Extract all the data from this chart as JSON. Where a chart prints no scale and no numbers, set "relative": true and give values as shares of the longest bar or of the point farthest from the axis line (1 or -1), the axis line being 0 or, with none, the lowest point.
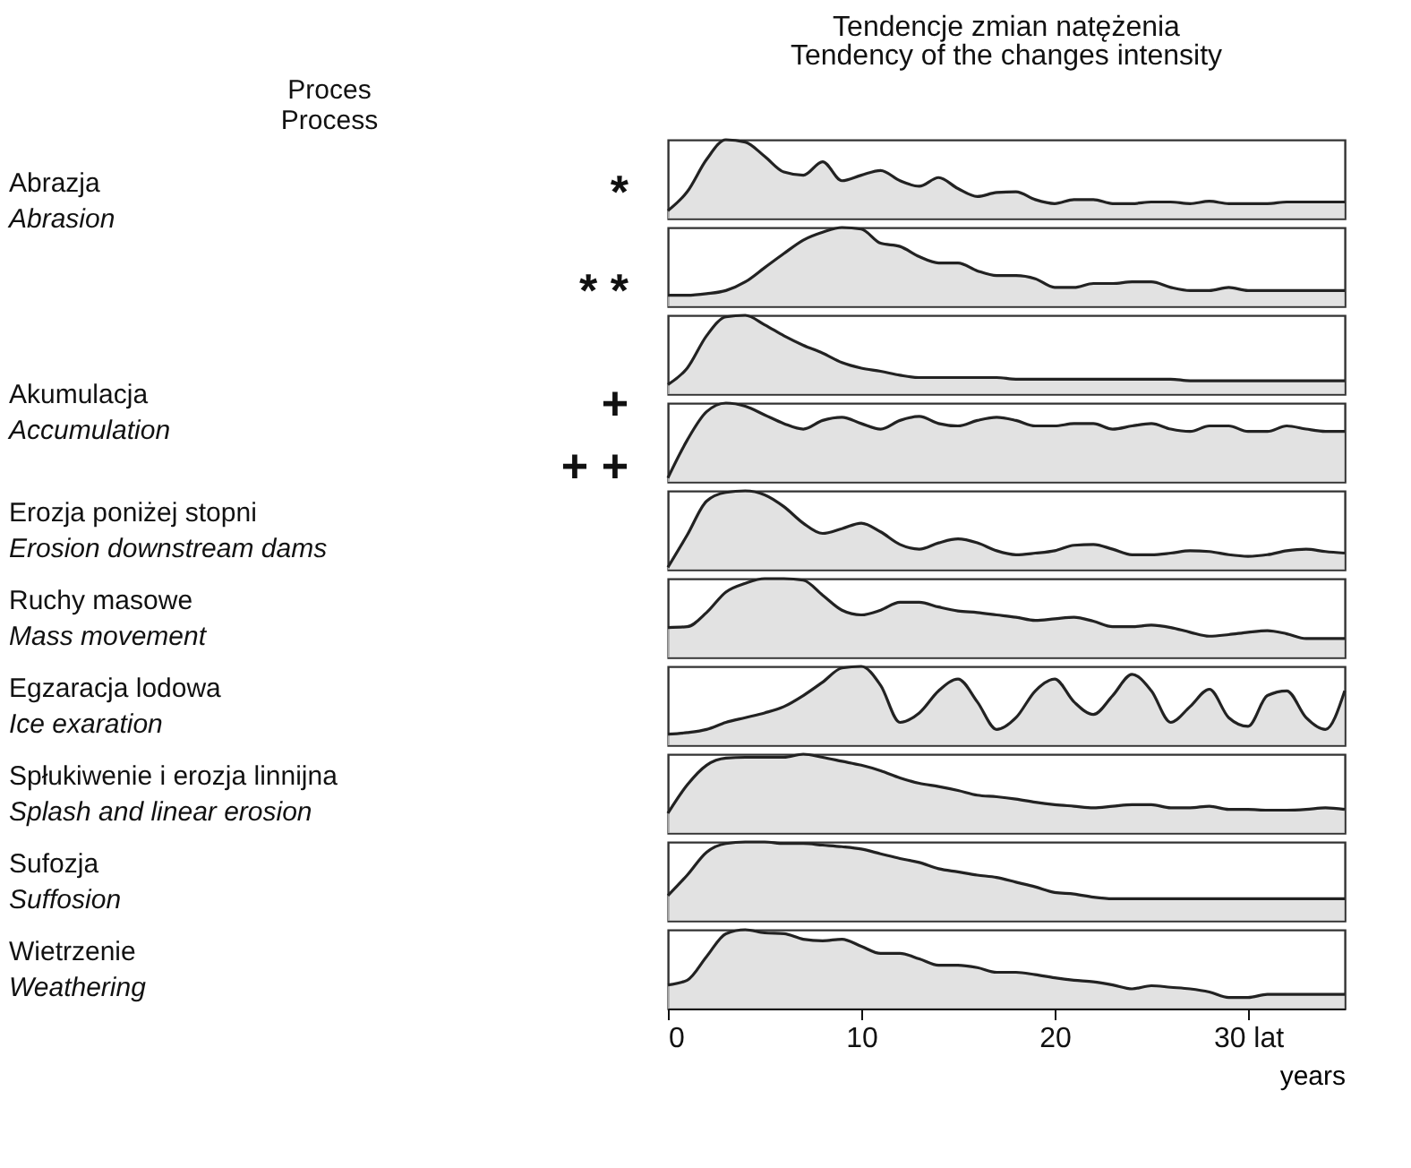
{
  "chart_data": [
    {
      "type": "area",
      "title": "Tendencje zmian natężenia",
      "subtitle": "Tendency of the changes intensity",
      "ylabel": "Abrazja",
      "annotations": [
        "Proces",
        "Process",
        "Abrasion",
        "*"
      ],
      "relative": true,
      "color": "#d6d6d6",
      "xlim": [
        0,
        35
      ],
      "tick_labels": false,
      "x": [
        0,
        1,
        2,
        3,
        4,
        5,
        6,
        7,
        8,
        9,
        10,
        11,
        12,
        13,
        14,
        15,
        16,
        17,
        18,
        19,
        20,
        21,
        22,
        23,
        24,
        25,
        26,
        27,
        28,
        29,
        30,
        31,
        32,
        33,
        34,
        35
      ],
      "values": [
        0.1,
        0.34,
        0.75,
        1,
        0.97,
        0.79,
        0.59,
        0.55,
        0.72,
        0.48,
        0.55,
        0.61,
        0.48,
        0.41,
        0.52,
        0.38,
        0.28,
        0.33,
        0.34,
        0.24,
        0.19,
        0.24,
        0.24,
        0.19,
        0.19,
        0.21,
        0.21,
        0.19,
        0.22,
        0.19,
        0.19,
        0.19,
        0.21,
        0.21,
        0.21,
        0.21
      ]
    },
    {
      "type": "area",
      "annotations": [
        "* *"
      ],
      "relative": true,
      "color": "#d6d6d6",
      "xlim": [
        0,
        35
      ],
      "tick_labels": false,
      "x": [
        0,
        1,
        2,
        3,
        4,
        5,
        6,
        7,
        8,
        9,
        10,
        11,
        12,
        13,
        14,
        15,
        16,
        17,
        18,
        19,
        20,
        21,
        22,
        23,
        24,
        25,
        26,
        27,
        28,
        29,
        30,
        31,
        32,
        33,
        34,
        35
      ],
      "values": [
        0.14,
        0.14,
        0.16,
        0.2,
        0.31,
        0.49,
        0.67,
        0.84,
        0.94,
        1,
        0.98,
        0.8,
        0.76,
        0.63,
        0.55,
        0.55,
        0.45,
        0.39,
        0.39,
        0.35,
        0.24,
        0.24,
        0.29,
        0.29,
        0.31,
        0.31,
        0.24,
        0.2,
        0.2,
        0.24,
        0.2,
        0.2,
        0.2,
        0.2,
        0.2,
        0.2
      ]
    },
    {
      "type": "area",
      "ylabel": "Akumulacja",
      "annotations": [
        "Accumulation",
        "+"
      ],
      "relative": true,
      "color": "#d6d6d6",
      "xlim": [
        0,
        35
      ],
      "tick_labels": false,
      "x": [
        0,
        1,
        2,
        3,
        4,
        5,
        6,
        7,
        8,
        9,
        10,
        11,
        12,
        13,
        14,
        15,
        16,
        17,
        18,
        19,
        20,
        21,
        22,
        23,
        24,
        25,
        26,
        27,
        28,
        29,
        30,
        31,
        32,
        33,
        34,
        35
      ],
      "values": [
        0.12,
        0.33,
        0.74,
        0.98,
        1,
        0.88,
        0.74,
        0.62,
        0.52,
        0.4,
        0.33,
        0.29,
        0.24,
        0.21,
        0.21,
        0.21,
        0.21,
        0.21,
        0.19,
        0.19,
        0.19,
        0.19,
        0.19,
        0.19,
        0.19,
        0.19,
        0.19,
        0.17,
        0.17,
        0.17,
        0.17,
        0.17,
        0.17,
        0.17,
        0.17,
        0.17
      ]
    },
    {
      "type": "area",
      "annotations": [
        "+ +"
      ],
      "relative": true,
      "color": "#d6d6d6",
      "xlim": [
        0,
        35
      ],
      "tick_labels": false,
      "x": [
        0,
        1,
        2,
        3,
        4,
        5,
        6,
        7,
        8,
        9,
        10,
        11,
        12,
        13,
        14,
        15,
        16,
        17,
        18,
        19,
        20,
        21,
        22,
        23,
        24,
        25,
        26,
        27,
        28,
        29,
        30,
        31,
        32,
        33,
        34,
        35
      ],
      "values": [
        0.05,
        0.53,
        0.89,
        1,
        0.96,
        0.85,
        0.74,
        0.67,
        0.78,
        0.82,
        0.74,
        0.67,
        0.78,
        0.83,
        0.74,
        0.71,
        0.78,
        0.82,
        0.78,
        0.71,
        0.71,
        0.74,
        0.74,
        0.67,
        0.71,
        0.74,
        0.67,
        0.64,
        0.71,
        0.71,
        0.64,
        0.64,
        0.71,
        0.67,
        0.64,
        0.64
      ]
    },
    {
      "type": "area",
      "ylabel": "Erozja poniżej stopni",
      "annotations": [
        "Erosion downstream dams"
      ],
      "relative": true,
      "color": "#d6d6d6",
      "xlim": [
        0,
        35
      ],
      "tick_labels": false,
      "x": [
        0,
        1,
        2,
        3,
        4,
        5,
        6,
        7,
        8,
        9,
        10,
        11,
        12,
        13,
        14,
        15,
        16,
        17,
        18,
        19,
        20,
        21,
        22,
        23,
        24,
        25,
        26,
        27,
        28,
        29,
        30,
        31,
        32,
        33,
        34,
        35
      ],
      "values": [
        0.03,
        0.44,
        0.87,
        0.98,
        1,
        0.95,
        0.8,
        0.59,
        0.46,
        0.52,
        0.59,
        0.48,
        0.32,
        0.26,
        0.34,
        0.39,
        0.34,
        0.24,
        0.19,
        0.21,
        0.24,
        0.31,
        0.32,
        0.26,
        0.19,
        0.19,
        0.21,
        0.24,
        0.23,
        0.19,
        0.17,
        0.19,
        0.24,
        0.26,
        0.23,
        0.21
      ]
    },
    {
      "type": "area",
      "ylabel": "Ruchy masowe",
      "annotations": [
        "Mass movement"
      ],
      "relative": true,
      "color": "#d6d6d6",
      "xlim": [
        0,
        35
      ],
      "tick_labels": false,
      "x": [
        0,
        1,
        2,
        3,
        4,
        5,
        6,
        7,
        8,
        9,
        10,
        11,
        12,
        13,
        14,
        15,
        16,
        17,
        18,
        19,
        20,
        21,
        22,
        23,
        24,
        25,
        26,
        27,
        28,
        29,
        30,
        31,
        32,
        33,
        34,
        35
      ],
      "values": [
        0.38,
        0.39,
        0.57,
        0.83,
        0.94,
        1,
        1,
        0.98,
        0.79,
        0.6,
        0.54,
        0.6,
        0.7,
        0.7,
        0.64,
        0.59,
        0.57,
        0.54,
        0.51,
        0.47,
        0.49,
        0.51,
        0.46,
        0.39,
        0.39,
        0.41,
        0.38,
        0.32,
        0.27,
        0.29,
        0.32,
        0.34,
        0.3,
        0.24,
        0.24,
        0.24
      ]
    },
    {
      "type": "area",
      "ylabel": "Egzaracja lodowa",
      "annotations": [
        "Ice exaration"
      ],
      "relative": true,
      "color": "#d6d6d6",
      "xlim": [
        0,
        35
      ],
      "tick_labels": false,
      "x": [
        0,
        1,
        2,
        3,
        4,
        5,
        6,
        7,
        8,
        9,
        10,
        11,
        12,
        13,
        14,
        15,
        16,
        17,
        18,
        19,
        20,
        21,
        22,
        23,
        24,
        25,
        26,
        27,
        28,
        29,
        30,
        31,
        32,
        33,
        34,
        35
      ],
      "values": [
        0.14,
        0.16,
        0.2,
        0.29,
        0.35,
        0.41,
        0.49,
        0.63,
        0.8,
        0.98,
        1,
        0.76,
        0.29,
        0.41,
        0.69,
        0.84,
        0.55,
        0.2,
        0.35,
        0.69,
        0.84,
        0.55,
        0.39,
        0.63,
        0.9,
        0.69,
        0.29,
        0.49,
        0.71,
        0.35,
        0.24,
        0.63,
        0.69,
        0.35,
        0.2,
        0.69
      ]
    },
    {
      "type": "area",
      "ylabel": "Spłukiwenie i erozja linnijna",
      "annotations": [
        "Splash and linear erosion"
      ],
      "relative": true,
      "color": "#d6d6d6",
      "xlim": [
        0,
        35
      ],
      "tick_labels": false,
      "x": [
        0,
        1,
        2,
        3,
        4,
        5,
        6,
        7,
        8,
        9,
        10,
        11,
        12,
        13,
        14,
        15,
        16,
        17,
        18,
        19,
        20,
        21,
        22,
        23,
        24,
        25,
        26,
        27,
        28,
        29,
        30,
        31,
        32,
        33,
        34,
        35
      ],
      "values": [
        0.25,
        0.61,
        0.86,
        0.95,
        0.96,
        0.96,
        0.96,
        1,
        0.96,
        0.91,
        0.86,
        0.79,
        0.7,
        0.63,
        0.59,
        0.54,
        0.48,
        0.46,
        0.43,
        0.39,
        0.36,
        0.34,
        0.32,
        0.34,
        0.36,
        0.36,
        0.32,
        0.32,
        0.34,
        0.3,
        0.3,
        0.29,
        0.29,
        0.3,
        0.32,
        0.3
      ]
    },
    {
      "type": "area",
      "ylabel": "Sufozja",
      "annotations": [
        "Suffosion"
      ],
      "relative": true,
      "color": "#d6d6d6",
      "xlim": [
        0,
        35
      ],
      "tick_labels": false,
      "x": [
        0,
        1,
        2,
        3,
        4,
        5,
        6,
        7,
        8,
        9,
        10,
        11,
        12,
        13,
        14,
        15,
        16,
        17,
        18,
        19,
        20,
        21,
        22,
        23,
        24,
        25,
        26,
        27,
        28,
        29,
        30,
        31,
        32,
        33,
        34,
        35
      ],
      "values": [
        0.32,
        0.58,
        0.87,
        0.98,
        1,
        1,
        0.98,
        0.98,
        0.96,
        0.94,
        0.91,
        0.85,
        0.79,
        0.74,
        0.66,
        0.62,
        0.58,
        0.55,
        0.49,
        0.43,
        0.36,
        0.34,
        0.3,
        0.28,
        0.28,
        0.28,
        0.28,
        0.28,
        0.28,
        0.28,
        0.28,
        0.28,
        0.28,
        0.28,
        0.28,
        0.28
      ]
    },
    {
      "type": "area",
      "ylabel": "Wietrzenie",
      "annotations": [
        "Weathering"
      ],
      "relative": true,
      "color": "#d6d6d6",
      "xlim": [
        0,
        35
      ],
      "xticks": [
        0,
        10,
        20,
        {
          "value": 30,
          "label": "30 lat"
        }
      ],
      "xlabel": "years",
      "x": [
        0,
        1,
        2,
        3,
        4,
        5,
        6,
        7,
        8,
        9,
        10,
        11,
        12,
        13,
        14,
        15,
        16,
        17,
        18,
        19,
        20,
        21,
        22,
        23,
        24,
        25,
        26,
        27,
        28,
        29,
        30,
        31,
        32,
        33,
        34,
        35
      ],
      "values": [
        0.3,
        0.36,
        0.66,
        0.95,
        1,
        0.96,
        0.95,
        0.88,
        0.86,
        0.88,
        0.79,
        0.7,
        0.7,
        0.63,
        0.55,
        0.55,
        0.52,
        0.46,
        0.46,
        0.43,
        0.39,
        0.36,
        0.34,
        0.3,
        0.25,
        0.29,
        0.27,
        0.25,
        0.21,
        0.14,
        0.14,
        0.18,
        0.18,
        0.18,
        0.18,
        0.18
      ]
    }
  ]
}
